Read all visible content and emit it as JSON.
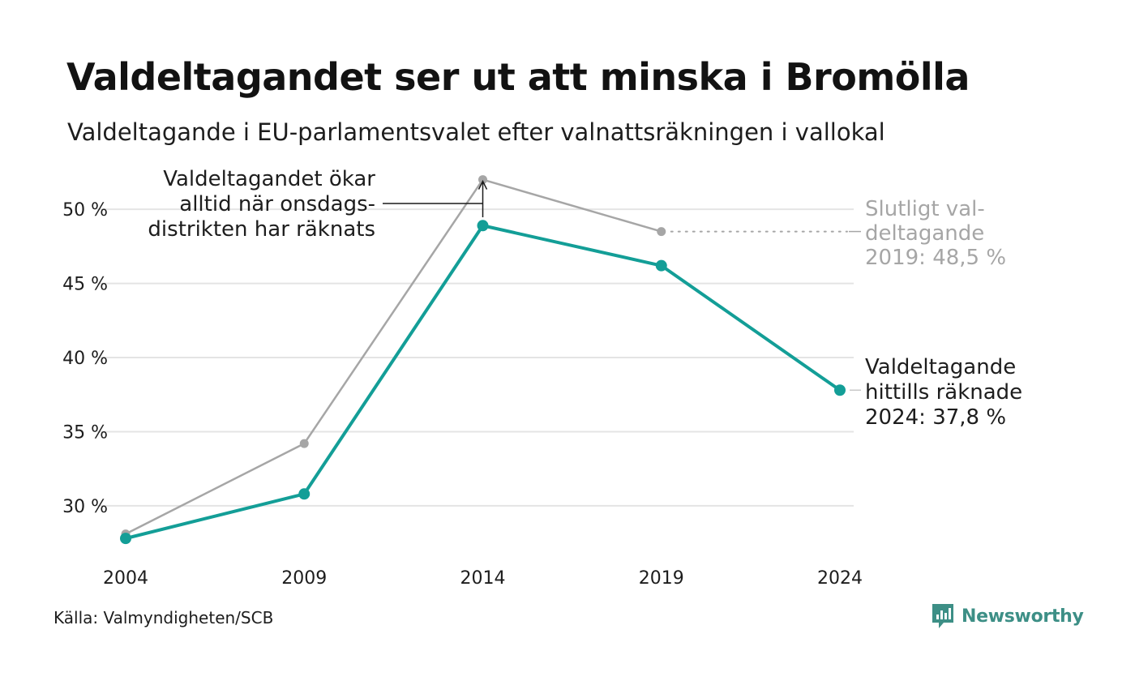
{
  "header": {
    "title": "Valdeltagandet ser ut att minska i Bromölla",
    "subtitle": "Valdeltagande i EU-parlamentsvalet efter valnattsräkningen i vallokal"
  },
  "footer": {
    "source": "Källa: Valmyndigheten/SCB",
    "logo_text": "Newsworthy"
  },
  "colors": {
    "counted": "#139e97",
    "final": "#a6a6a6",
    "grid": "#e4e4e4",
    "text": "#1d1d1d",
    "final_label": "#a6a6a6",
    "logo": "#3d8f86"
  },
  "chart_data": {
    "type": "line",
    "x": [
      2004,
      2009,
      2014,
      2019,
      2024
    ],
    "x_tick_labels": [
      "2004",
      "2009",
      "2014",
      "2019",
      "2024"
    ],
    "y_ticks": [
      30,
      35,
      40,
      45,
      50
    ],
    "y_tick_labels": [
      "30 %",
      "35 %",
      "40 %",
      "45 %",
      "50 %"
    ],
    "ylim": [
      27.2,
      52.6
    ],
    "grid": true,
    "series": [
      {
        "key": "final",
        "values": [
          28.1,
          34.2,
          52.0,
          48.5,
          null
        ]
      },
      {
        "key": "counted",
        "values": [
          27.8,
          30.8,
          48.9,
          46.2,
          37.8
        ]
      }
    ],
    "annotations": {
      "onsdag": {
        "lines": [
          "Valdeltagandet ökar",
          "alltid när onsdags-",
          "distrikten har räknats"
        ],
        "x": 2014
      },
      "final_2019": {
        "lines": [
          "Slutligt val-",
          "deltagande",
          "2019: 48,5 %"
        ],
        "x": 2019,
        "y": 48.5
      },
      "counted_2024": {
        "lines": [
          "Valdeltagande",
          "hittills räknade",
          "2024: 37,8 %"
        ],
        "x": 2024,
        "y": 37.8
      }
    }
  }
}
